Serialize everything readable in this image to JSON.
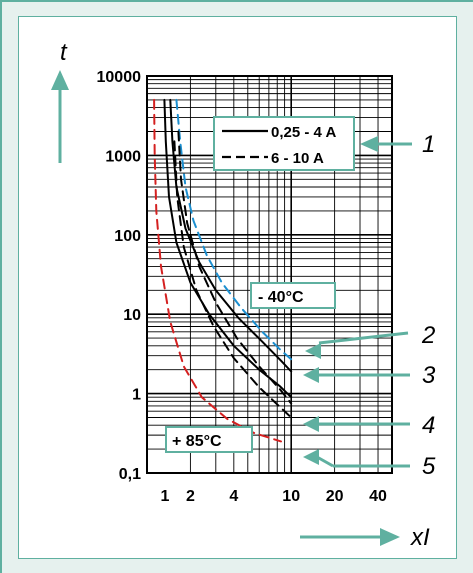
{
  "chart_data": {
    "type": "line",
    "title": "",
    "xlabel": "xI",
    "ylabel": "t",
    "x_scale": "log",
    "y_scale": "log",
    "xlim": [
      1.0,
      50
    ],
    "ylim": [
      0.1,
      10000
    ],
    "grid": true,
    "x_ticks": [
      {
        "value": 1,
        "label": "1"
      },
      {
        "value": 2,
        "label": "2"
      },
      {
        "value": 4,
        "label": "4"
      },
      {
        "value": 10,
        "label": "10"
      },
      {
        "value": 20,
        "label": "20"
      },
      {
        "value": 40,
        "label": "40"
      }
    ],
    "y_ticks": [
      {
        "value": 10000,
        "label": "10000"
      },
      {
        "value": 1000,
        "label": "1000"
      },
      {
        "value": 100,
        "label": "100"
      },
      {
        "value": 10,
        "label": "10"
      },
      {
        "value": 1,
        "label": "1"
      },
      {
        "value": 0.1,
        "label": "0,1"
      }
    ],
    "legend": {
      "placement": "top-right",
      "entries": [
        {
          "label": "0,25 - 4 A",
          "style": "solid"
        },
        {
          "label": "6 - 10 A",
          "style": "dashed"
        }
      ]
    },
    "annotations": [
      {
        "text": "- 40°C"
      },
      {
        "text": "+ 85°C"
      }
    ],
    "callouts": [
      "1",
      "2",
      "3",
      "4",
      "5"
    ],
    "series": [
      {
        "color": "#1c8fd0",
        "style": "dashed",
        "points": [
          [
            1.6,
            5000
          ],
          [
            1.7,
            1500
          ],
          [
            1.85,
            400
          ],
          [
            2.1,
            150
          ],
          [
            2.6,
            55
          ],
          [
            3.3,
            25
          ],
          [
            4.5,
            12
          ],
          [
            6.3,
            6
          ],
          [
            8.5,
            3.5
          ],
          [
            10,
            2.7
          ]
        ]
      },
      {
        "color": "#000000",
        "style": "solid",
        "points": [
          [
            1.45,
            5000
          ],
          [
            1.5,
            1500
          ],
          [
            1.6,
            400
          ],
          [
            1.85,
            120
          ],
          [
            2.3,
            45
          ],
          [
            3.0,
            20
          ],
          [
            4.3,
            9
          ],
          [
            6.3,
            4.5
          ],
          [
            8.5,
            2.6
          ],
          [
            10,
            1.9
          ]
        ]
      },
      {
        "color": "#000000",
        "style": "solid",
        "points": [
          [
            1.32,
            5000
          ],
          [
            1.35,
            1500
          ],
          [
            1.42,
            300
          ],
          [
            1.6,
            80
          ],
          [
            2.0,
            25
          ],
          [
            2.7,
            10
          ],
          [
            4.0,
            4
          ],
          [
            6.0,
            2
          ],
          [
            8.3,
            1.25
          ],
          [
            10,
            0.9
          ]
        ]
      },
      {
        "color": "#000000",
        "style": "dashed",
        "points": [
          [
            1.65,
            2000
          ],
          [
            1.72,
            500
          ],
          [
            1.9,
            140
          ],
          [
            2.3,
            40
          ],
          [
            3.0,
            14
          ],
          [
            4.2,
            5
          ],
          [
            6.0,
            2.2
          ],
          [
            8.3,
            1.15
          ],
          [
            10,
            0.75
          ]
        ]
      },
      {
        "color": "#000000",
        "style": "dashed",
        "points": [
          [
            1.55,
            1500
          ],
          [
            1.62,
            300
          ],
          [
            1.8,
            70
          ],
          [
            2.2,
            20
          ],
          [
            2.9,
            7
          ],
          [
            4.0,
            2.8
          ],
          [
            6.0,
            1.2
          ],
          [
            8.2,
            0.7
          ],
          [
            10,
            0.5
          ]
        ]
      },
      {
        "color": "#d42020",
        "style": "dashed",
        "points": [
          [
            1.12,
            5000
          ],
          [
            1.13,
            1000
          ],
          [
            1.16,
            200
          ],
          [
            1.25,
            40
          ],
          [
            1.45,
            8
          ],
          [
            1.8,
            2.2
          ],
          [
            2.4,
            0.9
          ],
          [
            3.6,
            0.48
          ],
          [
            5.5,
            0.32
          ],
          [
            8.5,
            0.25
          ]
        ]
      }
    ]
  }
}
